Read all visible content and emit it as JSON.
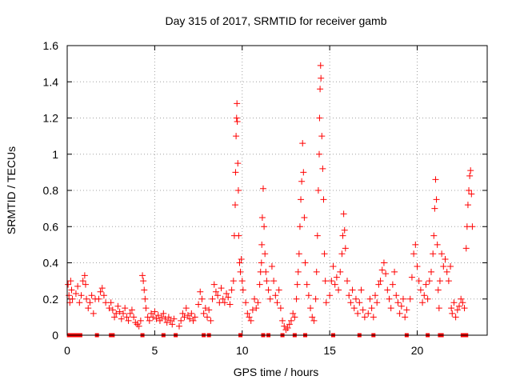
{
  "chart_data": {
    "type": "scatter",
    "title": "Day 315 of 2017, SRMTID for receiver gamb",
    "xlabel": "GPS time / hours",
    "ylabel": "SRMTID / TECUs",
    "xlim": [
      0,
      24
    ],
    "ylim": [
      0,
      1.6
    ],
    "xticks": [
      0,
      5,
      10,
      15,
      20
    ],
    "xtick_labels": [
      "0",
      "5",
      "10",
      "15",
      "20"
    ],
    "yticks": [
      0,
      0.2,
      0.4,
      0.6,
      0.8,
      1,
      1.2,
      1.4,
      1.6
    ],
    "ytick_labels": [
      "0",
      "0.2",
      "0.4",
      "0.6",
      "0.8",
      "1",
      "1.2",
      "1.4",
      "1.6"
    ],
    "grid": true,
    "marker": "+",
    "color": "#ff0000",
    "series": [
      {
        "name": "SRMTID",
        "points": [
          [
            0.05,
            0.28
          ],
          [
            0.1,
            0.22
          ],
          [
            0.15,
            0.18
          ],
          [
            0.2,
            0.3
          ],
          [
            0.25,
            0.25
          ],
          [
            0.3,
            0.2
          ],
          [
            0.5,
            0.23
          ],
          [
            0.6,
            0.27
          ],
          [
            0.7,
            0.18
          ],
          [
            0.8,
            0.22
          ],
          [
            0.9,
            0.3
          ],
          [
            1.0,
            0.33
          ],
          [
            1.05,
            0.28
          ],
          [
            1.1,
            0.2
          ],
          [
            1.2,
            0.15
          ],
          [
            1.3,
            0.18
          ],
          [
            1.4,
            0.22
          ],
          [
            1.5,
            0.12
          ],
          [
            1.6,
            0.2
          ],
          [
            1.8,
            0.2
          ],
          [
            1.9,
            0.24
          ],
          [
            2.0,
            0.26
          ],
          [
            2.1,
            0.22
          ],
          [
            2.2,
            0.18
          ],
          [
            2.4,
            0.15
          ],
          [
            2.5,
            0.18
          ],
          [
            2.6,
            0.14
          ],
          [
            2.7,
            0.1
          ],
          [
            2.8,
            0.12
          ],
          [
            2.9,
            0.16
          ],
          [
            3.0,
            0.13
          ],
          [
            3.1,
            0.09
          ],
          [
            3.2,
            0.12
          ],
          [
            3.3,
            0.15
          ],
          [
            3.4,
            0.1
          ],
          [
            3.5,
            0.08
          ],
          [
            3.6,
            0.12
          ],
          [
            3.7,
            0.14
          ],
          [
            3.8,
            0.1
          ],
          [
            3.9,
            0.07
          ],
          [
            4.0,
            0.06
          ],
          [
            4.1,
            0.05
          ],
          [
            4.2,
            0.08
          ],
          [
            4.3,
            0.33
          ],
          [
            4.35,
            0.3
          ],
          [
            4.4,
            0.25
          ],
          [
            4.45,
            0.2
          ],
          [
            4.5,
            0.15
          ],
          [
            4.6,
            0.1
          ],
          [
            4.7,
            0.08
          ],
          [
            4.8,
            0.12
          ],
          [
            4.9,
            0.1
          ],
          [
            5.0,
            0.13
          ],
          [
            5.1,
            0.09
          ],
          [
            5.2,
            0.11
          ],
          [
            5.3,
            0.08
          ],
          [
            5.4,
            0.1
          ],
          [
            5.5,
            0.12
          ],
          [
            5.6,
            0.09
          ],
          [
            5.7,
            0.07
          ],
          [
            5.8,
            0.1
          ],
          [
            5.9,
            0.08
          ],
          [
            6.0,
            0.06
          ],
          [
            6.1,
            0.09
          ],
          [
            6.4,
            0.05
          ],
          [
            6.5,
            0.08
          ],
          [
            6.6,
            0.12
          ],
          [
            6.7,
            0.1
          ],
          [
            6.8,
            0.15
          ],
          [
            6.9,
            0.11
          ],
          [
            7.0,
            0.09
          ],
          [
            7.1,
            0.12
          ],
          [
            7.2,
            0.08
          ],
          [
            7.3,
            0.1
          ],
          [
            7.5,
            0.17
          ],
          [
            7.6,
            0.24
          ],
          [
            7.7,
            0.2
          ],
          [
            7.8,
            0.12
          ],
          [
            7.9,
            0.15
          ],
          [
            8.0,
            0.1
          ],
          [
            8.1,
            0.14
          ],
          [
            8.2,
            0.08
          ],
          [
            8.3,
            0.2
          ],
          [
            8.4,
            0.28
          ],
          [
            8.5,
            0.24
          ],
          [
            8.6,
            0.22
          ],
          [
            8.7,
            0.18
          ],
          [
            8.8,
            0.26
          ],
          [
            8.9,
            0.2
          ],
          [
            9.0,
            0.18
          ],
          [
            9.1,
            0.23
          ],
          [
            9.2,
            0.21
          ],
          [
            9.3,
            0.17
          ],
          [
            9.4,
            0.25
          ],
          [
            9.5,
            0.3
          ],
          [
            9.55,
            0.55
          ],
          [
            9.6,
            0.72
          ],
          [
            9.62,
            0.9
          ],
          [
            9.65,
            1.1
          ],
          [
            9.68,
            1.2
          ],
          [
            9.7,
            1.28
          ],
          [
            9.72,
            1.18
          ],
          [
            9.75,
            0.95
          ],
          [
            9.78,
            0.8
          ],
          [
            9.8,
            0.55
          ],
          [
            9.85,
            0.4
          ],
          [
            9.9,
            0.35
          ],
          [
            9.95,
            0.42
          ],
          [
            10.0,
            0.3
          ],
          [
            10.05,
            0.25
          ],
          [
            10.2,
            0.18
          ],
          [
            10.3,
            0.12
          ],
          [
            10.4,
            0.1
          ],
          [
            10.5,
            0.08
          ],
          [
            10.6,
            0.14
          ],
          [
            10.7,
            0.2
          ],
          [
            10.8,
            0.15
          ],
          [
            10.9,
            0.18
          ],
          [
            11.0,
            0.28
          ],
          [
            11.05,
            0.35
          ],
          [
            11.1,
            0.4
          ],
          [
            11.12,
            0.5
          ],
          [
            11.15,
            0.65
          ],
          [
            11.2,
            0.81
          ],
          [
            11.25,
            0.6
          ],
          [
            11.3,
            0.45
          ],
          [
            11.35,
            0.35
          ],
          [
            11.4,
            0.3
          ],
          [
            11.5,
            0.25
          ],
          [
            11.6,
            0.2
          ],
          [
            11.7,
            0.38
          ],
          [
            11.8,
            0.3
          ],
          [
            11.9,
            0.22
          ],
          [
            12.0,
            0.18
          ],
          [
            12.1,
            0.25
          ],
          [
            12.2,
            0.15
          ],
          [
            12.3,
            0.08
          ],
          [
            12.4,
            0.05
          ],
          [
            12.5,
            0.03
          ],
          [
            12.6,
            0.04
          ],
          [
            12.7,
            0.06
          ],
          [
            12.8,
            0.08
          ],
          [
            12.9,
            0.12
          ],
          [
            13.0,
            0.1
          ],
          [
            13.1,
            0.2
          ],
          [
            13.15,
            0.28
          ],
          [
            13.2,
            0.35
          ],
          [
            13.25,
            0.45
          ],
          [
            13.3,
            0.6
          ],
          [
            13.35,
            0.75
          ],
          [
            13.4,
            0.85
          ],
          [
            13.45,
            1.06
          ],
          [
            13.5,
            0.9
          ],
          [
            13.55,
            0.65
          ],
          [
            13.6,
            0.4
          ],
          [
            13.7,
            0.28
          ],
          [
            13.8,
            0.22
          ],
          [
            13.9,
            0.15
          ],
          [
            14.0,
            0.1
          ],
          [
            14.1,
            0.08
          ],
          [
            14.2,
            0.2
          ],
          [
            14.25,
            0.35
          ],
          [
            14.3,
            0.55
          ],
          [
            14.35,
            0.8
          ],
          [
            14.4,
            1.0
          ],
          [
            14.42,
            1.2
          ],
          [
            14.45,
            1.36
          ],
          [
            14.48,
            1.49
          ],
          [
            14.5,
            1.42
          ],
          [
            14.55,
            1.1
          ],
          [
            14.6,
            0.92
          ],
          [
            14.65,
            0.75
          ],
          [
            14.7,
            0.45
          ],
          [
            14.75,
            0.3
          ],
          [
            14.8,
            0.18
          ],
          [
            15.0,
            0.22
          ],
          [
            15.1,
            0.3
          ],
          [
            15.2,
            0.38
          ],
          [
            15.3,
            0.28
          ],
          [
            15.4,
            0.32
          ],
          [
            15.5,
            0.25
          ],
          [
            15.6,
            0.35
          ],
          [
            15.7,
            0.45
          ],
          [
            15.75,
            0.55
          ],
          [
            15.8,
            0.67
          ],
          [
            15.85,
            0.58
          ],
          [
            15.9,
            0.48
          ],
          [
            16.0,
            0.3
          ],
          [
            16.1,
            0.22
          ],
          [
            16.2,
            0.18
          ],
          [
            16.3,
            0.25
          ],
          [
            16.4,
            0.15
          ],
          [
            16.5,
            0.2
          ],
          [
            16.6,
            0.12
          ],
          [
            16.7,
            0.18
          ],
          [
            16.8,
            0.25
          ],
          [
            16.9,
            0.14
          ],
          [
            17.0,
            0.1
          ],
          [
            17.2,
            0.12
          ],
          [
            17.3,
            0.2
          ],
          [
            17.4,
            0.15
          ],
          [
            17.5,
            0.1
          ],
          [
            17.6,
            0.22
          ],
          [
            17.7,
            0.18
          ],
          [
            17.8,
            0.28
          ],
          [
            17.9,
            0.3
          ],
          [
            18.0,
            0.36
          ],
          [
            18.1,
            0.4
          ],
          [
            18.2,
            0.34
          ],
          [
            18.3,
            0.25
          ],
          [
            18.4,
            0.2
          ],
          [
            18.5,
            0.15
          ],
          [
            18.6,
            0.28
          ],
          [
            18.7,
            0.35
          ],
          [
            18.8,
            0.22
          ],
          [
            18.9,
            0.18
          ],
          [
            19.0,
            0.12
          ],
          [
            19.1,
            0.16
          ],
          [
            19.2,
            0.2
          ],
          [
            19.3,
            0.1
          ],
          [
            19.4,
            0.14
          ],
          [
            19.6,
            0.2
          ],
          [
            19.7,
            0.32
          ],
          [
            19.8,
            0.45
          ],
          [
            19.9,
            0.5
          ],
          [
            20.0,
            0.38
          ],
          [
            20.1,
            0.3
          ],
          [
            20.2,
            0.25
          ],
          [
            20.3,
            0.18
          ],
          [
            20.4,
            0.22
          ],
          [
            20.5,
            0.28
          ],
          [
            20.6,
            0.2
          ],
          [
            20.7,
            0.3
          ],
          [
            20.8,
            0.35
          ],
          [
            20.9,
            0.45
          ],
          [
            20.95,
            0.55
          ],
          [
            21.0,
            0.7
          ],
          [
            21.05,
            0.86
          ],
          [
            21.1,
            0.75
          ],
          [
            21.15,
            0.5
          ],
          [
            21.2,
            0.25
          ],
          [
            21.25,
            0.15
          ],
          [
            21.3,
            0.3
          ],
          [
            21.4,
            0.45
          ],
          [
            21.5,
            0.38
          ],
          [
            21.6,
            0.42
          ],
          [
            21.7,
            0.35
          ],
          [
            21.8,
            0.3
          ],
          [
            21.9,
            0.38
          ],
          [
            21.95,
            0.15
          ],
          [
            22.0,
            0.12
          ],
          [
            22.1,
            0.18
          ],
          [
            22.2,
            0.1
          ],
          [
            22.3,
            0.14
          ],
          [
            22.4,
            0.16
          ],
          [
            22.5,
            0.2
          ],
          [
            22.6,
            0.18
          ],
          [
            22.7,
            0.15
          ],
          [
            22.8,
            0.48
          ],
          [
            22.85,
            0.6
          ],
          [
            22.9,
            0.72
          ],
          [
            22.95,
            0.8
          ],
          [
            23.0,
            0.88
          ],
          [
            23.05,
            0.91
          ],
          [
            23.1,
            0.78
          ],
          [
            23.15,
            0.6
          ]
        ]
      }
    ],
    "zero_points_x": [
      0.1,
      0.25,
      0.4,
      0.6,
      0.75,
      1.7,
      2.5,
      2.6,
      4.3,
      5.5,
      6.2,
      7.8,
      8.1,
      9.9,
      11.2,
      11.5,
      12.3,
      13.0,
      13.6,
      15.2,
      16.7,
      17.5,
      19.4,
      20.6,
      21.3,
      21.4,
      22.6,
      22.7,
      22.8
    ]
  }
}
